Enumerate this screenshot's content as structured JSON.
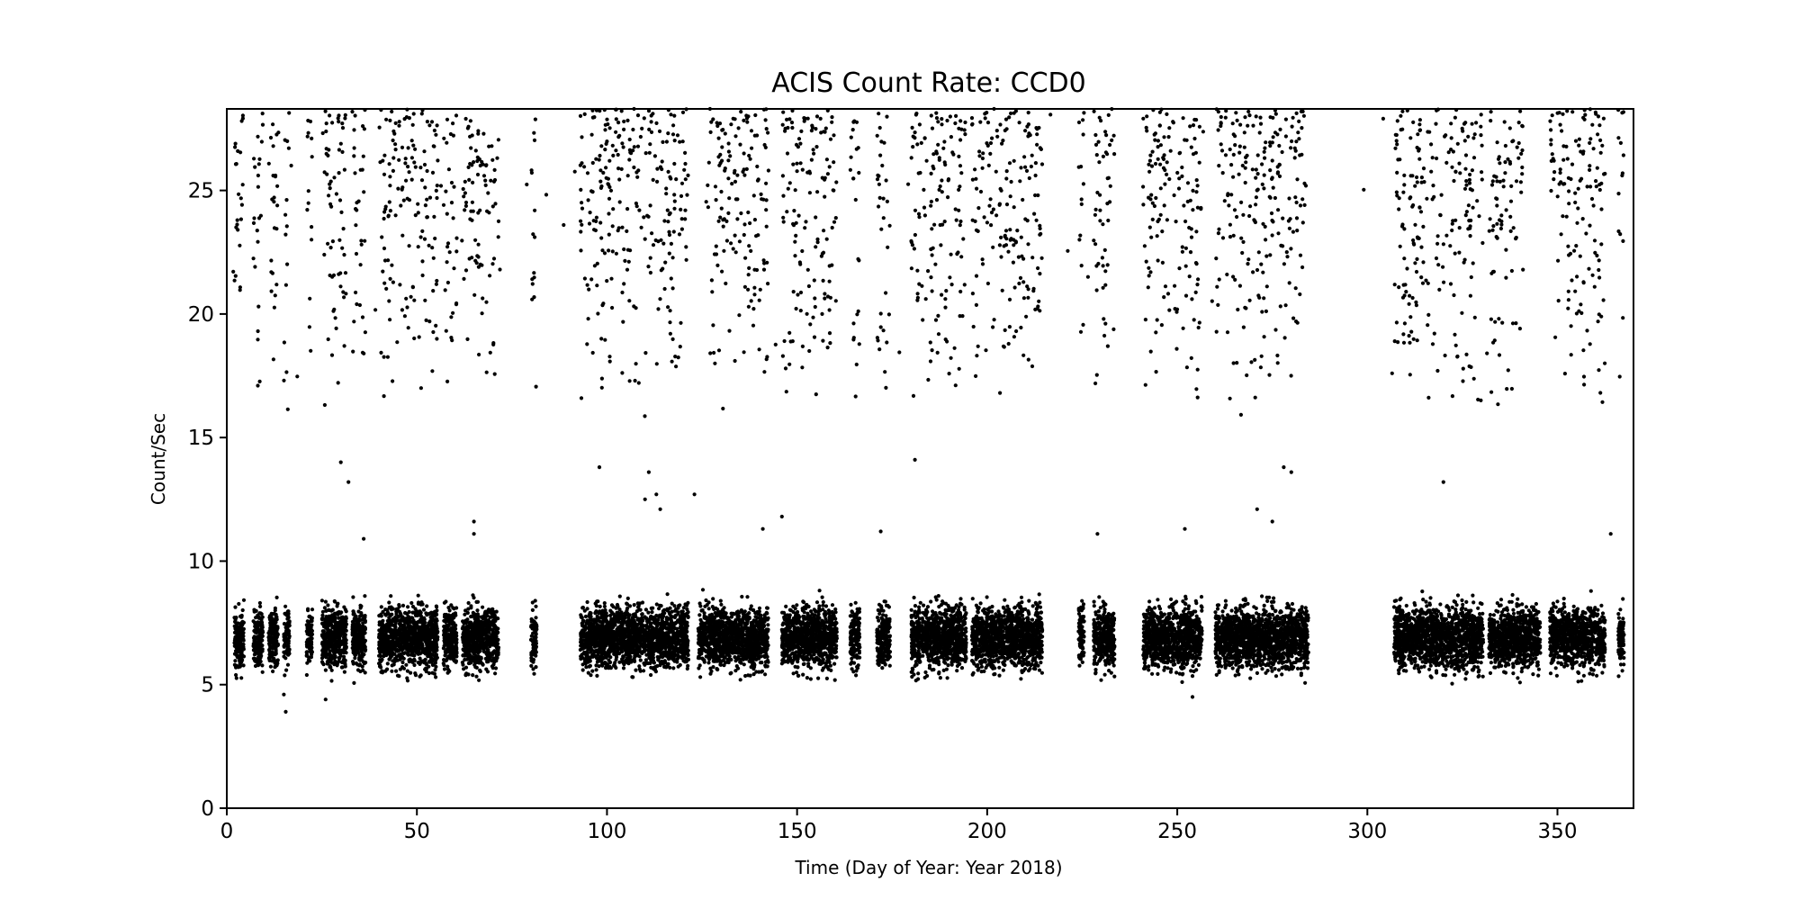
{
  "chart_data": {
    "type": "scatter",
    "title": "ACIS Count Rate: CCD0",
    "xlabel": "Time (Day of Year: Year 2018)",
    "ylabel": "Count/Sec",
    "xlim": [
      0,
      370
    ],
    "ylim": [
      0,
      28.3
    ],
    "xticks": [
      0,
      50,
      100,
      150,
      200,
      250,
      300,
      350
    ],
    "yticks": [
      0,
      5,
      10,
      15,
      20,
      25
    ],
    "grid": false,
    "legend": "none",
    "marker_color": "#000000",
    "series": [
      {
        "segments": [
          [
            2,
            4
          ],
          [
            7,
            9
          ],
          [
            11,
            13
          ],
          [
            15,
            16
          ],
          [
            21,
            22
          ],
          [
            25,
            31
          ],
          [
            33,
            36
          ],
          [
            40,
            55
          ],
          [
            57,
            60
          ],
          [
            62,
            71
          ],
          [
            80,
            81
          ],
          [
            93,
            121
          ],
          [
            124,
            142
          ],
          [
            146,
            160
          ],
          [
            164,
            166
          ],
          [
            171,
            174
          ],
          [
            180,
            194
          ],
          [
            196,
            214
          ],
          [
            224,
            225
          ],
          [
            228,
            233
          ],
          [
            241,
            256
          ],
          [
            260,
            284
          ],
          [
            307,
            330
          ],
          [
            332,
            345
          ],
          [
            348,
            362
          ],
          [
            366,
            367
          ]
        ],
        "base_center": 6.9,
        "base_spread": 1.1,
        "upper_range": [
          15.5,
          28.3
        ],
        "upper_gaps": [
          [
            123,
            126
          ],
          [
            284,
            297
          ],
          [
            341,
            346
          ]
        ],
        "outliers": [
          {
            "x": 15.5,
            "y": 3.9
          },
          {
            "x": 15,
            "y": 4.6
          },
          {
            "x": 26,
            "y": 4.4
          },
          {
            "x": 30,
            "y": 14.0
          },
          {
            "x": 32,
            "y": 13.2
          },
          {
            "x": 36,
            "y": 10.9
          },
          {
            "x": 65,
            "y": 11.6
          },
          {
            "x": 65,
            "y": 11.1
          },
          {
            "x": 98,
            "y": 13.8
          },
          {
            "x": 110,
            "y": 12.5
          },
          {
            "x": 111,
            "y": 13.6
          },
          {
            "x": 113,
            "y": 12.7
          },
          {
            "x": 114,
            "y": 12.1
          },
          {
            "x": 123,
            "y": 12.7
          },
          {
            "x": 141,
            "y": 11.3
          },
          {
            "x": 146,
            "y": 11.8
          },
          {
            "x": 172,
            "y": 11.2
          },
          {
            "x": 181,
            "y": 14.1
          },
          {
            "x": 229,
            "y": 11.1
          },
          {
            "x": 252,
            "y": 11.3
          },
          {
            "x": 271,
            "y": 12.1
          },
          {
            "x": 275,
            "y": 11.6
          },
          {
            "x": 278,
            "y": 13.8
          },
          {
            "x": 280,
            "y": 13.6
          },
          {
            "x": 320,
            "y": 13.2
          },
          {
            "x": 364,
            "y": 11.1
          },
          {
            "x": 254,
            "y": 4.5
          }
        ]
      }
    ]
  }
}
